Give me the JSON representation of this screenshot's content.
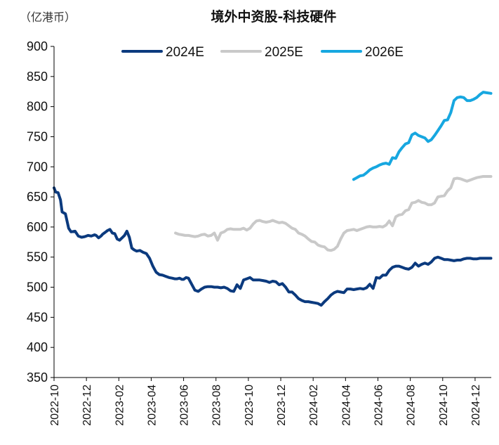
{
  "chart_data": {
    "type": "line",
    "title": "境外中资股-科技硬件",
    "unit_label": "（亿港币）",
    "xlabel": "",
    "ylabel": "",
    "ylim": [
      350,
      900
    ],
    "yticks": [
      350,
      400,
      450,
      500,
      550,
      600,
      650,
      700,
      750,
      800,
      850,
      900
    ],
    "xrange": [
      "2022-10",
      "2024-12-31"
    ],
    "xticks": [
      "2022-10",
      "2022-12",
      "2023-02",
      "2023-04",
      "2023-06",
      "2023-08",
      "2023-10",
      "2023-12",
      "2024-02",
      "2024-04",
      "2024-06",
      "2024-08",
      "2024-10",
      "2024-12"
    ],
    "legend_position": "top-center",
    "series": [
      {
        "name": "2024E",
        "color": "#0b3a7e",
        "x": [
          0.0,
          0.1,
          0.25,
          0.4,
          0.5,
          0.7,
          0.9,
          1.05,
          1.3,
          1.5,
          1.7,
          1.9,
          2.1,
          2.3,
          2.5,
          2.6,
          2.75,
          2.9,
          3.0,
          3.1,
          3.2,
          3.3,
          3.45,
          3.6,
          3.75,
          3.9,
          4.05,
          4.2,
          4.35,
          4.5,
          4.65,
          4.8,
          4.95,
          5.1,
          5.3,
          5.5,
          5.7,
          5.9,
          6.1,
          6.3,
          6.5,
          6.7,
          6.9,
          7.1,
          7.3,
          7.45,
          7.6,
          7.75,
          7.9,
          8.0,
          8.15,
          8.3,
          8.5,
          8.7,
          8.9,
          9.1,
          9.3,
          9.5,
          9.7,
          9.9,
          10.1,
          10.3,
          10.5,
          10.7,
          10.9,
          11.1,
          11.3,
          11.5,
          11.7,
          11.9,
          12.1,
          12.3,
          12.5,
          12.7,
          12.9,
          13.1,
          13.3,
          13.5,
          13.7,
          13.9,
          14.1,
          14.3,
          14.5,
          14.7,
          14.9,
          15.1,
          15.3,
          15.5,
          15.7,
          15.9,
          16.1,
          16.3,
          16.5,
          16.7,
          16.9,
          17.1,
          17.3,
          17.5,
          17.7,
          17.9,
          18.1,
          18.3,
          18.5,
          18.7,
          18.9,
          19.1,
          19.3,
          19.5,
          19.7,
          19.9,
          20.1,
          20.3,
          20.5,
          20.7,
          20.9,
          21.1,
          21.3,
          21.5,
          21.7,
          21.9,
          22.1,
          22.3,
          22.5,
          22.7,
          22.9,
          23.1,
          23.3,
          23.5,
          23.7,
          23.9,
          24.1,
          24.3,
          24.5,
          24.7,
          24.9,
          25.1,
          25.3,
          25.5,
          25.7,
          25.9,
          26.1,
          26.3,
          26.5,
          26.7,
          26.98
        ],
        "values": [
          665,
          658,
          657,
          645,
          625,
          622,
          598,
          592,
          593,
          585,
          583,
          584,
          586,
          585,
          587,
          586,
          582,
          585,
          588,
          590,
          592,
          594,
          596,
          590,
          589,
          580,
          578,
          582,
          586,
          593,
          583,
          565,
          562,
          560,
          561,
          558,
          556,
          548,
          535,
          525,
          521,
          520,
          518,
          516,
          515,
          514,
          514,
          515,
          513,
          513,
          516,
          515,
          505,
          495,
          493,
          497,
          500,
          501,
          501,
          500,
          500,
          499,
          500,
          498,
          494,
          493,
          504,
          498,
          512,
          514,
          516,
          512,
          512,
          512,
          511,
          510,
          508,
          510,
          509,
          504,
          506,
          500,
          492,
          492,
          487,
          481,
          478,
          476,
          476,
          475,
          474,
          473,
          470,
          476,
          481,
          487,
          491,
          493,
          492,
          491,
          497,
          497,
          496,
          497,
          498,
          497,
          499,
          505,
          498,
          516,
          515,
          520,
          520,
          528,
          533,
          535,
          535,
          533,
          531,
          530,
          533,
          540,
          535,
          538,
          540,
          538,
          542,
          548,
          550,
          548,
          546,
          546,
          545,
          544,
          545,
          545,
          547,
          548,
          548,
          547,
          547,
          548,
          548,
          548,
          548
        ],
        "_note": "x is months since 2022-10; values estimated from the gridlines"
      },
      {
        "name": "2025E",
        "color": "#c9c9c9",
        "x": [
          7.5,
          7.7,
          7.9,
          8.1,
          8.3,
          8.5,
          8.7,
          8.9,
          9.1,
          9.3,
          9.5,
          9.7,
          9.9,
          10.1,
          10.3,
          10.5,
          10.7,
          10.9,
          11.1,
          11.3,
          11.5,
          11.7,
          11.9,
          12.1,
          12.3,
          12.5,
          12.7,
          12.9,
          13.1,
          13.3,
          13.5,
          13.7,
          13.9,
          14.1,
          14.3,
          14.5,
          14.7,
          14.9,
          15.1,
          15.3,
          15.5,
          15.7,
          15.9,
          16.1,
          16.3,
          16.5,
          16.7,
          16.9,
          17.1,
          17.3,
          17.5,
          17.7,
          17.9,
          18.1,
          18.3,
          18.5,
          18.7,
          18.9,
          19.1,
          19.3,
          19.5,
          19.7,
          19.9,
          20.1,
          20.3,
          20.5,
          20.7,
          20.9,
          21.1,
          21.3,
          21.5,
          21.7,
          21.9,
          22.1,
          22.3,
          22.5,
          22.7,
          22.9,
          23.1,
          23.3,
          23.5,
          23.7,
          23.9,
          24.1,
          24.3,
          24.5,
          24.7,
          24.9,
          25.1,
          25.3,
          25.5,
          25.7,
          25.9,
          26.1,
          26.3,
          26.5,
          26.7,
          26.98
        ],
        "values": [
          590,
          588,
          587,
          586,
          586,
          585,
          584,
          585,
          587,
          588,
          585,
          586,
          590,
          578,
          590,
          592,
          596,
          597,
          596,
          596,
          596,
          598,
          595,
          598,
          605,
          610,
          611,
          609,
          608,
          609,
          611,
          609,
          607,
          608,
          606,
          602,
          598,
          596,
          590,
          588,
          585,
          580,
          576,
          575,
          570,
          568,
          567,
          562,
          561,
          563,
          568,
          580,
          590,
          594,
          595,
          596,
          594,
          596,
          598,
          600,
          601,
          600,
          600,
          601,
          600,
          603,
          610,
          602,
          617,
          620,
          621,
          627,
          629,
          640,
          641,
          644,
          641,
          640,
          637,
          637,
          640,
          650,
          651,
          652,
          660,
          665,
          680,
          681,
          680,
          678,
          676,
          678,
          680,
          682,
          683,
          684,
          684,
          684
        ]
      },
      {
        "name": "2026E",
        "color": "#17a7e0",
        "x": [
          18.5,
          18.7,
          18.9,
          19.1,
          19.3,
          19.5,
          19.7,
          19.9,
          20.1,
          20.3,
          20.5,
          20.7,
          20.9,
          21.1,
          21.3,
          21.5,
          21.7,
          21.9,
          22.1,
          22.3,
          22.5,
          22.7,
          22.9,
          23.1,
          23.3,
          23.5,
          23.7,
          23.9,
          24.1,
          24.3,
          24.5,
          24.7,
          24.9,
          25.1,
          25.3,
          25.5,
          25.7,
          25.9,
          26.1,
          26.3,
          26.5,
          26.7,
          26.98
        ],
        "values": [
          679,
          682,
          685,
          686,
          690,
          695,
          698,
          700,
          703,
          705,
          706,
          704,
          715,
          714,
          725,
          732,
          738,
          740,
          753,
          756,
          752,
          750,
          748,
          742,
          745,
          752,
          760,
          768,
          777,
          778,
          790,
          810,
          815,
          816,
          815,
          810,
          810,
          812,
          815,
          820,
          824,
          823,
          822
        ]
      }
    ]
  }
}
